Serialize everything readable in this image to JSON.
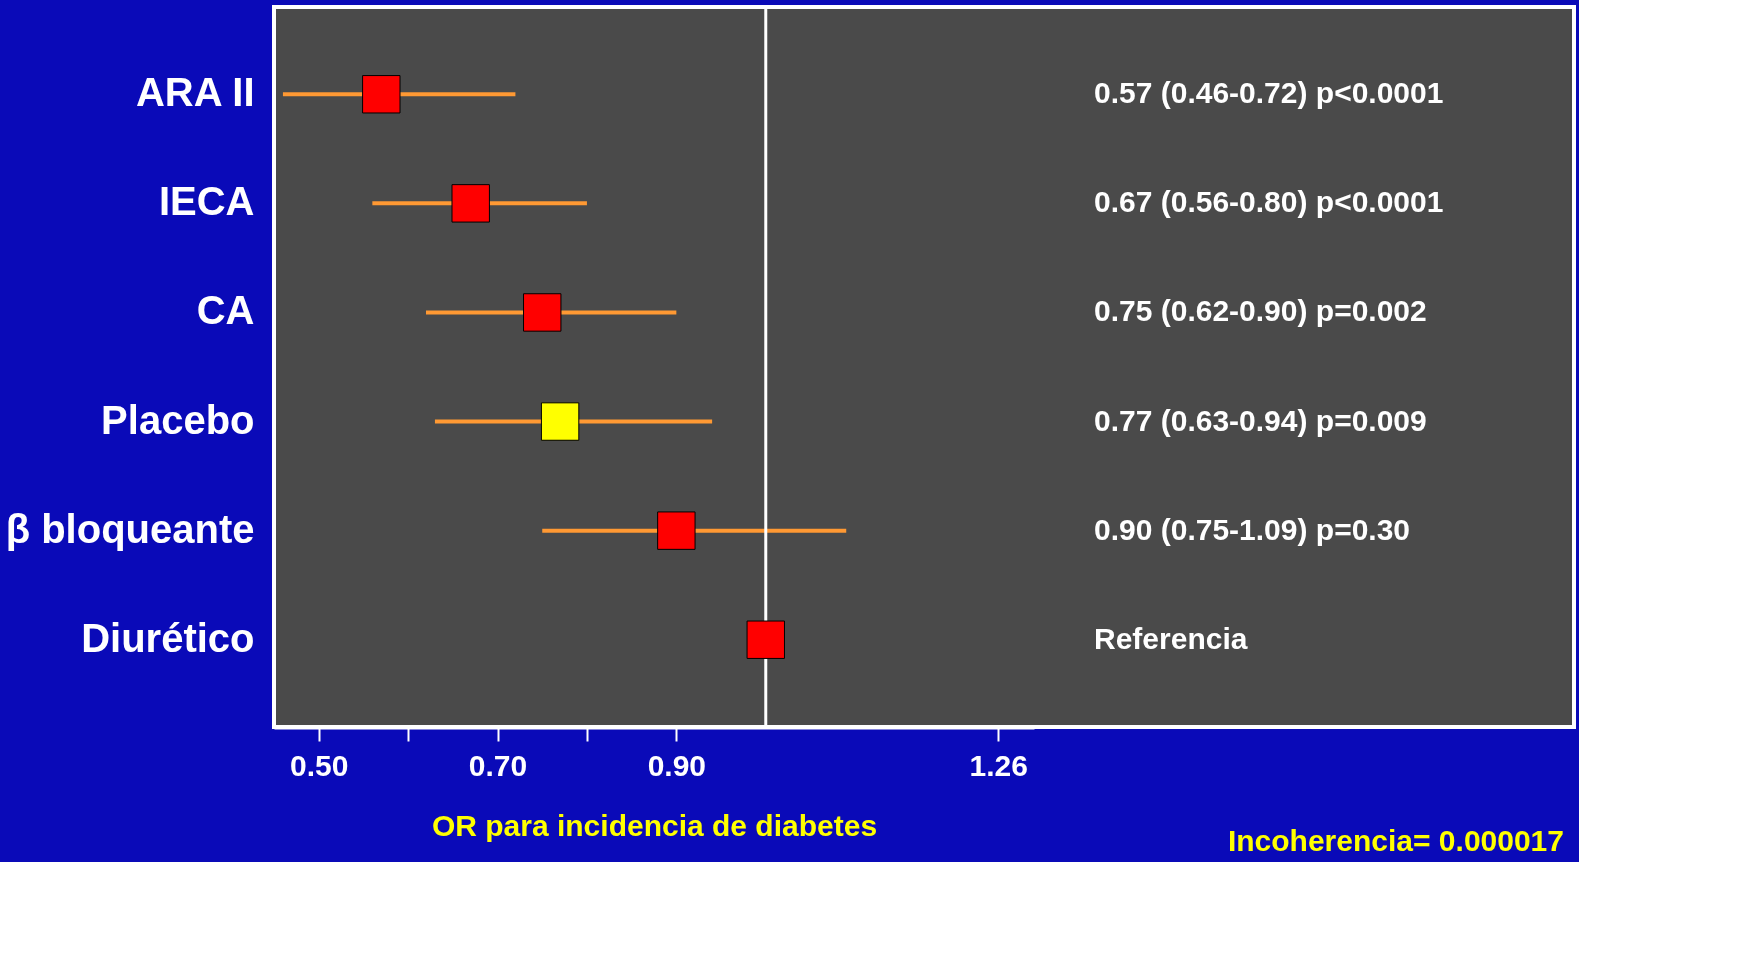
{
  "chart_data": {
    "type": "scatter",
    "orientation": "horizontal",
    "marker": "square",
    "xlabel": "OR para incidencia de diabetes",
    "categories": [
      "ARA II",
      "IECA",
      "CA",
      "Placebo",
      "β bloqueante",
      "Diurético"
    ],
    "values": [
      0.57,
      0.67,
      0.75,
      0.77,
      0.9,
      1.0
    ],
    "errors": [
      [
        0.46,
        0.72
      ],
      [
        0.56,
        0.8
      ],
      [
        0.62,
        0.9
      ],
      [
        0.63,
        0.94
      ],
      [
        0.75,
        1.09
      ],
      null
    ],
    "colors": [
      "#ff0000",
      "#ff0000",
      "#ff0000",
      "#ffff00",
      "#ff0000",
      "#ff0000"
    ],
    "xlim": [
      0.45,
      1.3
    ],
    "xticks": [
      {
        "value": 0.5,
        "label": "0.50"
      },
      {
        "value": 0.6,
        "label": null
      },
      {
        "value": 0.7,
        "label": "0.70"
      },
      {
        "value": 0.8,
        "label": null
      },
      {
        "value": 0.9,
        "label": "0.90"
      },
      {
        "value": 1.26,
        "label": "1.26"
      }
    ],
    "ref_lines": [
      {
        "axis": "x",
        "value": 1.0,
        "color": "#ffffff"
      }
    ],
    "annotations": [
      "0.57 (0.46-0.72) p<0.0001",
      "0.67 (0.56-0.80) p<0.0001",
      "0.75 (0.62-0.90) p=0.002",
      "0.77 (0.63-0.94) p=0.009",
      "0.90 (0.75-1.09) p=0.30",
      "Referencia",
      "Incoherencia= 0.000017"
    ],
    "grid": false
  }
}
